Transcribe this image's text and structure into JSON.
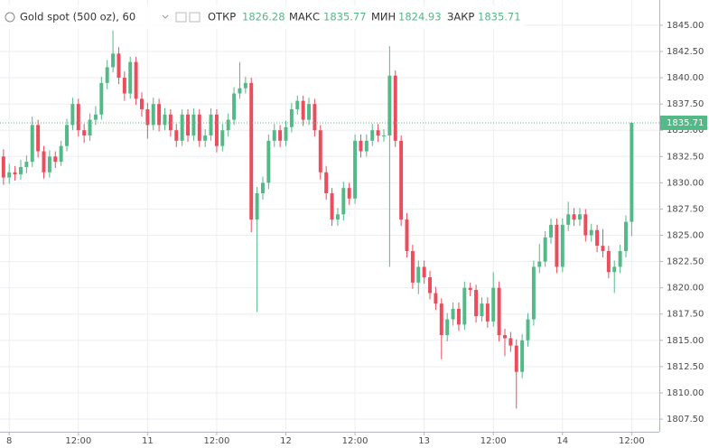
{
  "chart_data": {
    "type": "candlestick",
    "title": "Gold spot (500 oz), 60",
    "legend": {
      "open": "ОТКР",
      "high": "МАКС",
      "low": "МИН",
      "close": "ЗАКР"
    },
    "up_color": "#53b987",
    "down_color": "#eb4d5c",
    "x": [
      0,
      1,
      2,
      3,
      4,
      5,
      6,
      7,
      8,
      9,
      10,
      11,
      12,
      13,
      14,
      15,
      16,
      17,
      18,
      19,
      20,
      21,
      22,
      23,
      24,
      25,
      26,
      27,
      28,
      29,
      30,
      31,
      32,
      33,
      34,
      35,
      36,
      37,
      38,
      39,
      40,
      41,
      42,
      43,
      44,
      45,
      46,
      47,
      48,
      49,
      50,
      51,
      52,
      53,
      54,
      55,
      56,
      57,
      58,
      59,
      60,
      61,
      62,
      63,
      64,
      65,
      66,
      67,
      68,
      69,
      70,
      71,
      72,
      73,
      74,
      75,
      76,
      77,
      78,
      79,
      80,
      81,
      82,
      83,
      84,
      85,
      86,
      87,
      88,
      89,
      90,
      91,
      92,
      93,
      94,
      95,
      96,
      97,
      98,
      99,
      100,
      101,
      102,
      103,
      104,
      105,
      106,
      107,
      108,
      109
    ],
    "open": [
      1832.5,
      1830.5,
      1831,
      1830.8,
      1831.5,
      1832,
      1835.5,
      1833,
      1831,
      1832.5,
      1832,
      1833.5,
      1835.5,
      1837.5,
      1835,
      1834.5,
      1836,
      1836.5,
      1839.5,
      1841,
      1842.3,
      1840,
      1838.5,
      1841.5,
      1838,
      1837,
      1835.5,
      1837.5,
      1835.5,
      1836.5,
      1835,
      1834,
      1836.5,
      1834.5,
      1836.5,
      1834,
      1834.5,
      1836.5,
      1833.5,
      1835,
      1836,
      1838.5,
      1839,
      1839.5,
      1826.5,
      1829,
      1830,
      1834,
      1835,
      1834,
      1835.3,
      1837,
      1837.8,
      1836,
      1837.5,
      1835,
      1831,
      1829,
      1826.5,
      1827,
      1829.5,
      1828.5,
      1834,
      1833,
      1834,
      1835,
      1834.5,
      1834.5,
      1840.2,
      1834,
      1826.5,
      1823.5,
      1820.5,
      1822,
      1821,
      1819.5,
      1818.5,
      1815.5,
      1817,
      1818,
      1816.5,
      1820,
      1819.8,
      1817.3,
      1818.5,
      1816.8,
      1820,
      1815.5,
      1815.2,
      1814.5,
      1812,
      1815,
      1817,
      1822,
      1822.5,
      1824.8,
      1826,
      1822,
      1826,
      1827,
      1826.5,
      1827,
      1825,
      1825.5,
      1824,
      1823.5,
      1821.5,
      1822,
      1823.5,
      1826.28
    ],
    "high": [
      1833.2,
      1831.8,
      1831.6,
      1832.2,
      1832.6,
      1836.3,
      1836,
      1833.5,
      1833.1,
      1833,
      1834,
      1836.1,
      1838.1,
      1838,
      1835.6,
      1836.6,
      1837.3,
      1840.1,
      1841.7,
      1844.5,
      1842.9,
      1840.6,
      1842,
      1842,
      1838.6,
      1837.6,
      1838.1,
      1838,
      1837.1,
      1837,
      1835.6,
      1837,
      1837,
      1837.1,
      1837,
      1835.1,
      1837.1,
      1837,
      1835.6,
      1836.6,
      1839.1,
      1841.5,
      1840.1,
      1840,
      1829.6,
      1830.6,
      1834.6,
      1835.6,
      1835.5,
      1835.9,
      1837.6,
      1838.3,
      1838.3,
      1838.1,
      1838,
      1835.5,
      1831.6,
      1829.5,
      1827.6,
      1830.1,
      1830,
      1834.6,
      1834.6,
      1834.6,
      1835.6,
      1835.6,
      1835.1,
      1843,
      1840.7,
      1834.5,
      1827.1,
      1824.1,
      1822.6,
      1822.6,
      1821.6,
      1820.1,
      1819,
      1817.6,
      1818.6,
      1818.6,
      1820.6,
      1820.5,
      1820.3,
      1819.1,
      1819.1,
      1821.5,
      1820.6,
      1816.1,
      1815.8,
      1815.1,
      1815.6,
      1817.6,
      1822.6,
      1824.2,
      1825.4,
      1826.6,
      1826.6,
      1826.6,
      1828.2,
      1827.6,
      1827.6,
      1827.5,
      1826.1,
      1826,
      1825.6,
      1824,
      1822.6,
      1824.1,
      1826.9,
      1835.77
    ],
    "low": [
      1829.8,
      1829.9,
      1830.2,
      1830.3,
      1830.9,
      1831.5,
      1832.4,
      1830.4,
      1830.5,
      1831.4,
      1831.6,
      1833,
      1835,
      1834.4,
      1833.8,
      1834,
      1835.5,
      1836,
      1838.9,
      1840.5,
      1839.4,
      1837.8,
      1838,
      1837.4,
      1836.3,
      1834.2,
      1835,
      1834.9,
      1835,
      1834.4,
      1833.4,
      1833.5,
      1833.9,
      1834,
      1833.4,
      1833.4,
      1834,
      1832.9,
      1833,
      1834.4,
      1835.5,
      1838,
      1838.5,
      1825.3,
      1817.7,
      1828.4,
      1829.4,
      1833.4,
      1833.4,
      1833.5,
      1834.8,
      1836.5,
      1835.4,
      1835.5,
      1834.4,
      1830.3,
      1828.4,
      1825.9,
      1825.9,
      1826.4,
      1827.9,
      1828,
      1832.4,
      1832.5,
      1833.5,
      1833.9,
      1833.9,
      1822,
      1833.4,
      1825.9,
      1822.9,
      1819.9,
      1819.4,
      1820.4,
      1818.9,
      1817.9,
      1813.2,
      1814.9,
      1816.4,
      1815.9,
      1816,
      1819.2,
      1816.7,
      1816.8,
      1816.2,
      1816.3,
      1814.9,
      1813.5,
      1813.9,
      1808.5,
      1811.4,
      1814.4,
      1816.4,
      1821.4,
      1822,
      1824.2,
      1821.4,
      1821.5,
      1825.4,
      1825.9,
      1825.9,
      1824.4,
      1824.4,
      1823.4,
      1822.9,
      1820.9,
      1819.5,
      1821.4,
      1822.9,
      1824.93
    ],
    "close": [
      1830.5,
      1831,
      1830.8,
      1831.5,
      1832,
      1835.5,
      1833,
      1831,
      1832.5,
      1832,
      1833.5,
      1835.5,
      1837.5,
      1835,
      1834.5,
      1836,
      1836.5,
      1839.5,
      1841,
      1842.3,
      1840,
      1838.5,
      1841.5,
      1838,
      1837,
      1835.5,
      1837.5,
      1835.5,
      1836.5,
      1835,
      1834,
      1836.5,
      1834.5,
      1836.5,
      1834,
      1834.5,
      1836.5,
      1833.5,
      1835,
      1836,
      1838.5,
      1839,
      1839.5,
      1826.5,
      1829,
      1830,
      1834,
      1835,
      1834,
      1835.3,
      1837,
      1837.8,
      1836,
      1837.5,
      1835,
      1831,
      1829,
      1826.5,
      1827,
      1829.5,
      1828.5,
      1834,
      1833,
      1834,
      1835,
      1834.5,
      1834.5,
      1840.2,
      1834,
      1826.5,
      1823.5,
      1820.5,
      1822,
      1821,
      1819.5,
      1818.5,
      1815.5,
      1817,
      1818,
      1816.5,
      1820,
      1819.8,
      1817.3,
      1818.5,
      1816.8,
      1820,
      1815.5,
      1815.2,
      1814.5,
      1812,
      1815,
      1817,
      1822,
      1822.5,
      1824.8,
      1826,
      1822,
      1826,
      1827,
      1826.5,
      1827,
      1825,
      1825.5,
      1824,
      1823.5,
      1821.5,
      1822,
      1823.5,
      1826.28,
      1835.71
    ],
    "xlim": [
      -0.6,
      113.8
    ],
    "xticks": [
      {
        "value": 1,
        "label": "8"
      },
      {
        "value": 13,
        "label": "12:00"
      },
      {
        "value": 25,
        "label": "11"
      },
      {
        "value": 37,
        "label": "12:00"
      },
      {
        "value": 49,
        "label": "12"
      },
      {
        "value": 61,
        "label": "12:00"
      },
      {
        "value": 73,
        "label": "13"
      },
      {
        "value": 85,
        "label": "12:00"
      },
      {
        "value": 97,
        "label": "14"
      },
      {
        "value": 109,
        "label": "12:00"
      }
    ],
    "ylim": [
      1806.3,
      1847.4
    ],
    "yticks": [
      {
        "value": 1807.5,
        "label": "1807.50"
      },
      {
        "value": 1810,
        "label": "1810.00"
      },
      {
        "value": 1812.5,
        "label": "1812.50"
      },
      {
        "value": 1815,
        "label": "1815.00"
      },
      {
        "value": 1817.5,
        "label": "1817.50"
      },
      {
        "value": 1820,
        "label": "1820.00"
      },
      {
        "value": 1822.5,
        "label": "1822.50"
      },
      {
        "value": 1825,
        "label": "1825.00"
      },
      {
        "value": 1827.5,
        "label": "1827.50"
      },
      {
        "value": 1830,
        "label": "1830.00"
      },
      {
        "value": 1832.5,
        "label": "1832.50"
      },
      {
        "value": 1835,
        "label": "1835.00"
      },
      {
        "value": 1837.5,
        "label": "1837.50"
      },
      {
        "value": 1840,
        "label": "1840.00"
      },
      {
        "value": 1842.5,
        "label": "1842.50"
      },
      {
        "value": 1845,
        "label": "1845.00"
      }
    ],
    "grid": true
  }
}
